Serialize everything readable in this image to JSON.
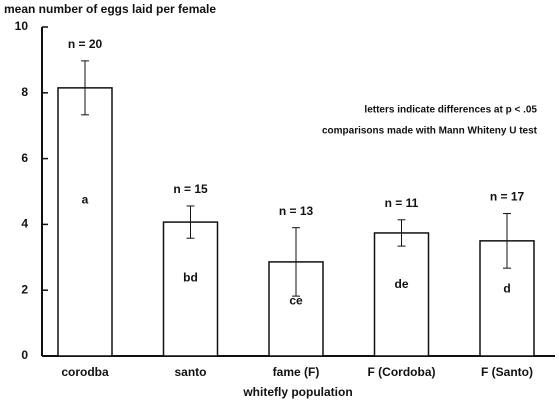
{
  "chart_data": {
    "type": "bar",
    "ylabel": "mean number of eggs laid per female",
    "xlabel": "whitefly population",
    "categories": [
      "corodba",
      "santo",
      "fame (F)",
      "F (Cordoba)",
      "F (Santo)"
    ],
    "values": [
      8.15,
      4.07,
      2.86,
      3.74,
      3.5
    ],
    "errors": [
      0.82,
      0.49,
      1.04,
      0.4,
      0.83
    ],
    "n_labels": [
      "n = 20",
      "n = 15",
      "n = 13",
      "n = 11",
      "n = 17"
    ],
    "letters": [
      "a",
      "bd",
      "ce",
      "de",
      "d"
    ],
    "annotations": [
      "letters indicate differences at p < .05",
      "comparisons made with Mann Whiteny U test"
    ],
    "color": "#ffffff",
    "ylim": [
      0,
      10
    ],
    "yticks": [
      0,
      2,
      4,
      6,
      8,
      10
    ]
  }
}
